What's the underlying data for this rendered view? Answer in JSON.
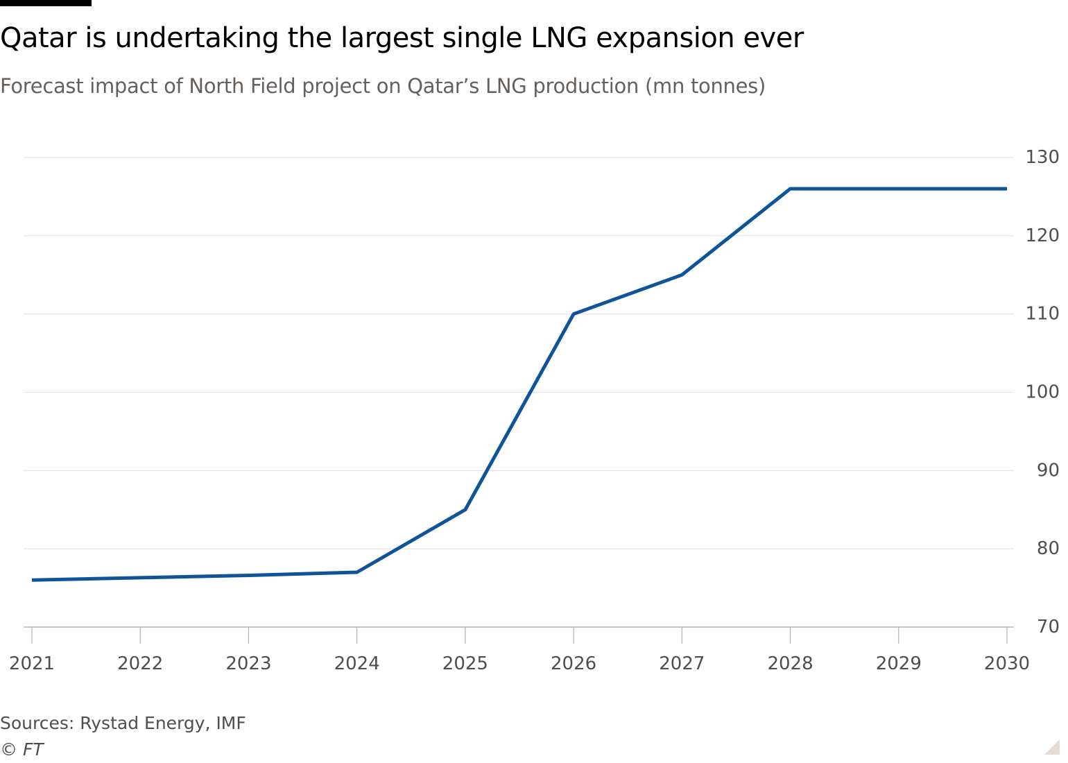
{
  "title": "Qatar is undertaking the largest single LNG expansion ever",
  "subtitle": "Forecast impact of North Field project on Qatar’s LNG production (mn tonnes)",
  "source": "Sources: Rystad Energy, IMF",
  "copyright": "© FT",
  "colors": {
    "line": "#0f5499",
    "grid": "#e6e3df",
    "axis": "#b6b2ad",
    "text": "#4e4e4e",
    "subtitle": "#66605c"
  },
  "chart_data": {
    "type": "line",
    "title": "Qatar is undertaking the largest single LNG expansion ever",
    "subtitle": "Forecast impact of North Field project on Qatar’s LNG production (mn tonnes)",
    "xlabel": "",
    "ylabel": "",
    "x": [
      2021,
      2022,
      2023,
      2024,
      2025,
      2026,
      2027,
      2028,
      2029,
      2030
    ],
    "x_tick_labels": [
      "2021",
      "2022",
      "2023",
      "2024",
      "2025",
      "2026",
      "2027",
      "2028",
      "2029",
      "2030"
    ],
    "y_ticks": [
      70,
      80,
      90,
      100,
      110,
      120,
      130
    ],
    "y_tick_labels": [
      "70",
      "80",
      "90",
      "100",
      "110",
      "120",
      "130"
    ],
    "ylim": [
      70,
      130
    ],
    "xlim": [
      2021,
      2030
    ],
    "y_axis_side": "right",
    "grid": true,
    "legend": "none",
    "series": [
      {
        "values": [
          76,
          76.3,
          76.6,
          77,
          85,
          110,
          115,
          126,
          126,
          126
        ]
      }
    ]
  }
}
